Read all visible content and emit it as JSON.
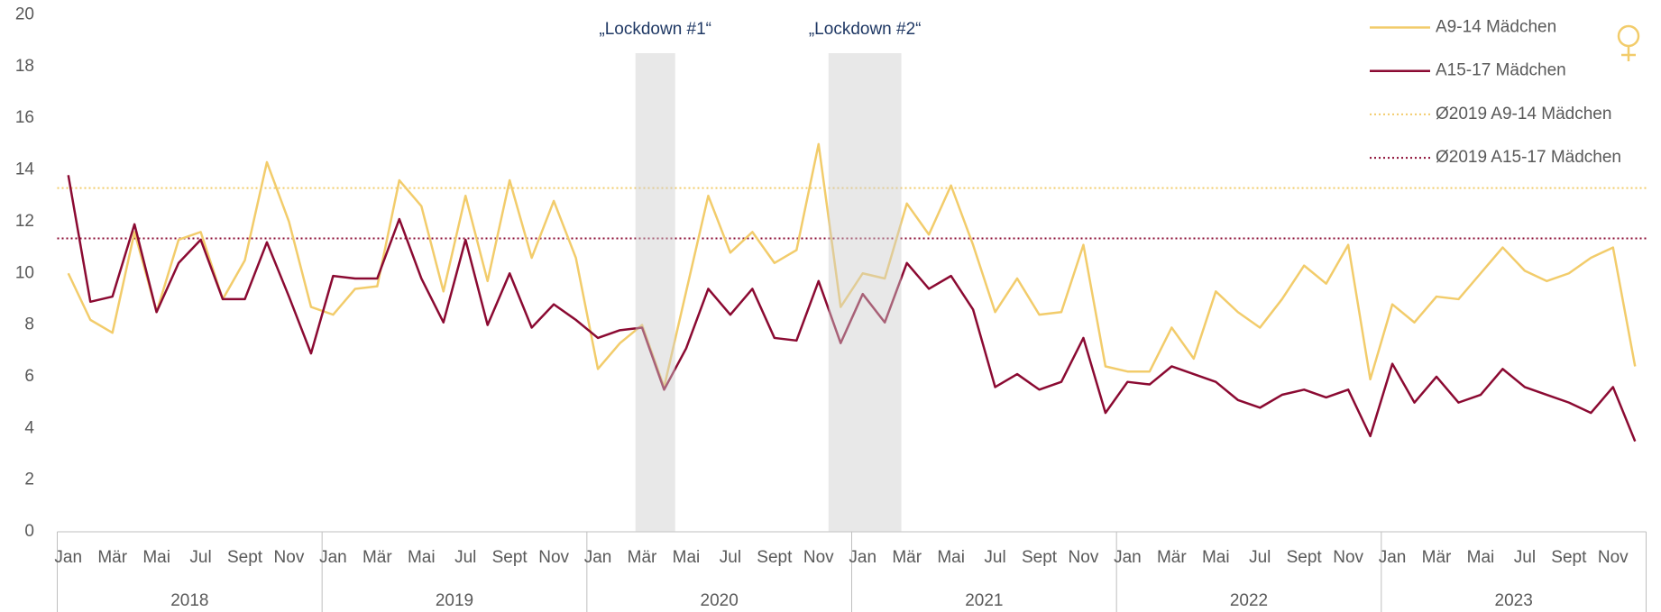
{
  "chart_data": {
    "type": "line",
    "categories": [
      "Jan",
      null,
      "Mär",
      null,
      "Mai",
      null,
      "Jul",
      null,
      "Sept",
      null,
      "Nov",
      null,
      "Jan",
      null,
      "Mär",
      null,
      "Mai",
      null,
      "Jul",
      null,
      "Sept",
      null,
      "Nov",
      null,
      "Jan",
      null,
      "Mär",
      null,
      "Mai",
      null,
      "Jul",
      null,
      "Sept",
      null,
      "Nov",
      null,
      "Jan",
      null,
      "Mär",
      null,
      "Mai",
      null,
      "Jul",
      null,
      "Sept",
      null,
      "Nov",
      null,
      "Jan",
      null,
      "Mär",
      null,
      "Mai",
      null,
      "Jul",
      null,
      "Sept",
      null,
      "Nov",
      null,
      "Jan",
      null,
      "Mär",
      null,
      "Mai",
      null,
      "Jul",
      null,
      "Sept",
      null,
      "Nov",
      null
    ],
    "years": [
      "2018",
      "2019",
      "2020",
      "2021",
      "2022",
      "2023"
    ],
    "series": [
      {
        "name": "A9-14 Mädchen",
        "color": "#f2cc6b",
        "values": [
          10.0,
          8.2,
          7.7,
          11.6,
          8.5,
          11.3,
          11.6,
          9.0,
          10.5,
          14.3,
          12.0,
          8.7,
          8.4,
          9.4,
          9.5,
          13.6,
          12.6,
          9.3,
          13.0,
          9.7,
          13.6,
          10.6,
          12.8,
          10.6,
          6.3,
          7.3,
          8.0,
          5.6,
          9.3,
          13.0,
          10.8,
          11.6,
          10.4,
          10.9,
          15.0,
          8.7,
          10.0,
          9.8,
          12.7,
          11.5,
          13.4,
          11.1,
          8.5,
          9.8,
          8.4,
          8.5,
          11.1,
          6.4,
          6.2,
          6.2,
          7.9,
          6.7,
          9.3,
          8.5,
          7.9,
          9.0,
          10.3,
          9.6,
          11.1,
          5.9,
          8.8,
          8.1,
          9.1,
          9.0,
          10.0,
          11.0,
          10.1,
          9.7,
          10.0,
          10.6,
          11.0,
          6.4
        ]
      },
      {
        "name": "A15-17 Mädchen",
        "color": "#8b0a32",
        "values": [
          13.8,
          8.9,
          9.1,
          11.9,
          8.5,
          10.4,
          11.3,
          9.0,
          9.0,
          11.2,
          9.1,
          6.9,
          9.9,
          9.8,
          9.8,
          12.1,
          9.8,
          8.1,
          11.3,
          8.0,
          10.0,
          7.9,
          8.8,
          8.2,
          7.5,
          7.8,
          7.9,
          5.5,
          7.1,
          9.4,
          8.4,
          9.4,
          7.5,
          7.4,
          9.7,
          7.3,
          9.2,
          8.1,
          10.4,
          9.4,
          9.9,
          8.6,
          5.6,
          6.1,
          5.5,
          5.8,
          7.5,
          4.6,
          5.8,
          5.7,
          6.4,
          6.1,
          5.8,
          5.1,
          4.8,
          5.3,
          5.5,
          5.2,
          5.5,
          3.7,
          6.5,
          5.0,
          6.0,
          5.0,
          5.3,
          6.3,
          5.6,
          5.3,
          5.0,
          4.6,
          5.6,
          3.5
        ]
      }
    ],
    "reference_lines": [
      {
        "name": "Ø2019 A9-14 Mädchen",
        "color": "#f2cc6b",
        "value": 13.3,
        "style": "dotted"
      },
      {
        "name": "Ø2019 A15-17 Mädchen",
        "color": "#8b0a32",
        "value": 11.35,
        "style": "dotted"
      }
    ],
    "annotations": [
      {
        "label": "„Lockdown #1“",
        "from": 26.2,
        "to": 28.0
      },
      {
        "label": "„Lockdown #2“",
        "from": 34.95,
        "to": 38.25
      }
    ],
    "ylim": [
      0,
      20
    ],
    "yticks": [
      0,
      2,
      4,
      6,
      8,
      10,
      12,
      14,
      16,
      18,
      20
    ],
    "grid": false,
    "legend": "top-right"
  }
}
